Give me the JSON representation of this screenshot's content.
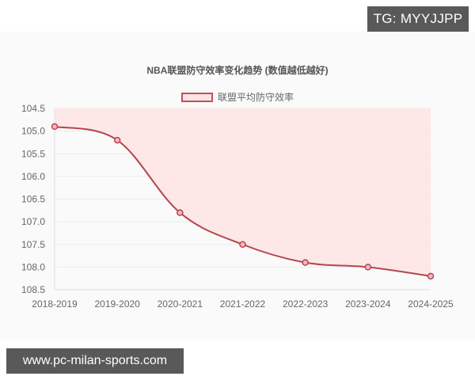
{
  "watermarks": {
    "top_right": "TG: MYYJJPP",
    "bottom_left": "www.pc-milan-sports.com"
  },
  "colors": {
    "line": "#b5454f",
    "fill": "#fde3e3",
    "marker_fill": "#f7b8bd",
    "grid": "#ececec",
    "tag_bg": "#595959"
  },
  "chart_data": {
    "type": "line",
    "title": "NBA联盟防守效率变化趋势 (数值越低越好)",
    "legend": [
      "联盟平均防守效率"
    ],
    "legend_position": "top",
    "xlabel": "",
    "ylabel": "",
    "categories": [
      "2018-2019",
      "2019-2020",
      "2020-2021",
      "2021-2022",
      "2022-2023",
      "2023-2024",
      "2024-2025"
    ],
    "series": [
      {
        "name": "联盟平均防守效率",
        "values": [
          104.9,
          105.2,
          106.8,
          107.5,
          107.9,
          108.0,
          108.2
        ]
      }
    ],
    "ylim": [
      104.5,
      108.5
    ],
    "y_reversed": true,
    "yticks": [
      "104.5",
      "105.0",
      "105.5",
      "106.0",
      "106.5",
      "107.0",
      "107.5",
      "108.0",
      "108.5"
    ],
    "grid": true,
    "fill": "area above line to top (reversed axis origin)",
    "smooth": true
  }
}
